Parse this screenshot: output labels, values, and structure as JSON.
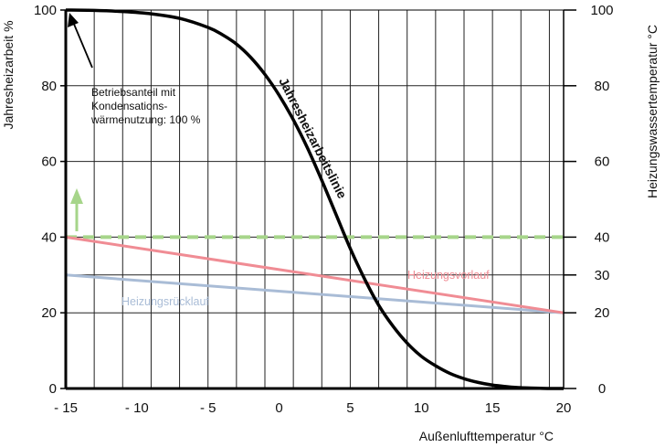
{
  "chart_data": {
    "type": "line",
    "xlabel": "Außenlufttemperatur °C",
    "ylabel_left": "Jahresheizarbeit %",
    "ylabel_right": "Heizungswassertemperatur °C",
    "xlim": [
      -15,
      20
    ],
    "ylim": [
      0,
      100
    ],
    "x_ticks": [
      -15,
      -10,
      -5,
      0,
      5,
      10,
      15,
      20
    ],
    "x_tick_labels": [
      "- 15",
      "- 10",
      "- 5",
      "0",
      "5",
      "10",
      "15",
      "20"
    ],
    "y_ticks_left": [
      0,
      20,
      40,
      60,
      80,
      100
    ],
    "y_ticks_right": [
      0,
      20,
      30,
      40,
      60,
      80,
      100
    ],
    "grid": "vertical lines every 2 °C",
    "series": [
      {
        "name": "Jahresheizarbeitslinie",
        "color": "#000000",
        "x": [
          -15,
          -13,
          -11,
          -9,
          -7,
          -5,
          -4,
          -3,
          -2,
          -1,
          0,
          1,
          2,
          3,
          4,
          5,
          6,
          7,
          8,
          9,
          10,
          11,
          12,
          13,
          14,
          15,
          16,
          17,
          18,
          19,
          20
        ],
        "y": [
          100,
          99.9,
          99.6,
          99,
          97.8,
          95.4,
          93.5,
          91,
          87.5,
          83,
          77.5,
          71,
          63.5,
          55,
          46,
          37,
          29,
          22,
          16.5,
          12,
          8.5,
          6,
          4,
          2.6,
          1.6,
          0.9,
          0.5,
          0.2,
          0.1,
          0,
          0
        ]
      },
      {
        "name": "Heizungsvorlauf",
        "color": "#f08c94",
        "x": [
          -15,
          20
        ],
        "y": [
          40,
          20
        ]
      },
      {
        "name": "Heizungsrücklauf",
        "color": "#a9bcd6",
        "x": [
          -15,
          20
        ],
        "y": [
          30,
          20
        ]
      },
      {
        "name": "",
        "color": "#a6d58a",
        "style": "dashed",
        "x": [
          -15,
          20
        ],
        "y": [
          40,
          40
        ]
      }
    ],
    "annotation": [
      "Betriebsanteil mit",
      "Kondensations-",
      "wärmenutzung: 100 %"
    ]
  }
}
